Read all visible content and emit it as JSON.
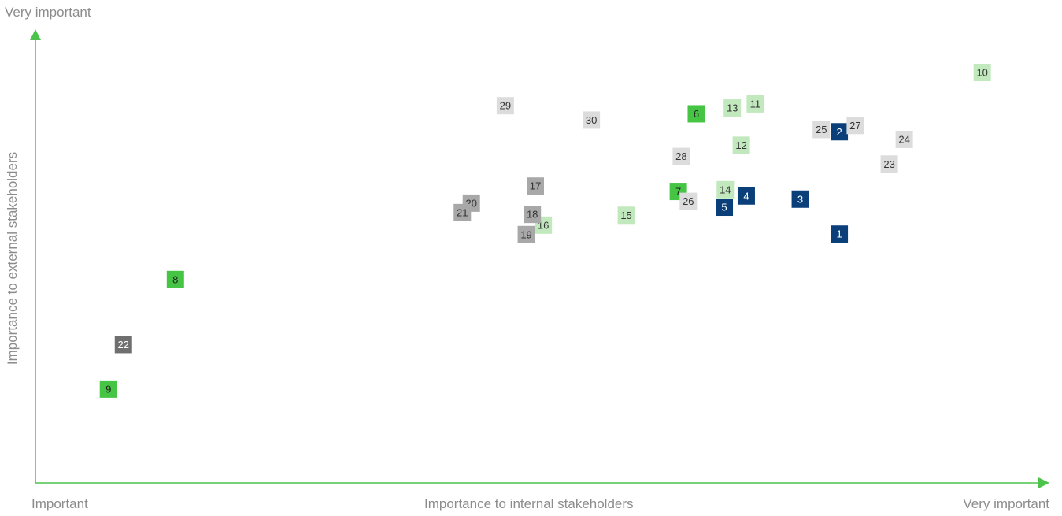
{
  "chart_data": {
    "type": "scatter",
    "title": "",
    "xlabel": "Importance to internal stakeholders",
    "ylabel": "Importance to external stakeholders",
    "x_min_label": "Important",
    "x_max_label": "Very important",
    "y_max_label": "Very important",
    "xlim": [
      0,
      1
    ],
    "ylim": [
      0,
      1
    ],
    "grid": false,
    "axis_color": "#4cc34a",
    "categories": {
      "navy": {
        "fill": "#0b3f7a",
        "text": "#ffffff"
      },
      "green": {
        "fill": "#46c444",
        "text": "#1f1f1f"
      },
      "light_green": {
        "fill": "#c2e9bd",
        "text": "#333333"
      },
      "light_gray": {
        "fill": "#dcdcdc",
        "text": "#333333"
      },
      "mid_gray": {
        "fill": "#a8a8a8",
        "text": "#333333"
      },
      "dark_gray": {
        "fill": "#6f6f6f",
        "text": "#ffffff"
      }
    },
    "points": [
      {
        "label": "1",
        "category": "navy",
        "x": 0.804,
        "y": 0.554
      },
      {
        "label": "2",
        "category": "navy",
        "x": 0.804,
        "y": 0.782
      },
      {
        "label": "3",
        "category": "navy",
        "x": 0.765,
        "y": 0.632
      },
      {
        "label": "4",
        "category": "navy",
        "x": 0.711,
        "y": 0.639
      },
      {
        "label": "5",
        "category": "navy",
        "x": 0.689,
        "y": 0.614
      },
      {
        "label": "6",
        "category": "green",
        "x": 0.661,
        "y": 0.822
      },
      {
        "label": "7",
        "category": "green",
        "x": 0.643,
        "y": 0.649
      },
      {
        "label": "8",
        "category": "green",
        "x": 0.14,
        "y": 0.453
      },
      {
        "label": "9",
        "category": "green",
        "x": 0.073,
        "y": 0.209
      },
      {
        "label": "10",
        "category": "light_green",
        "x": 0.947,
        "y": 0.914
      },
      {
        "label": "11",
        "category": "light_green",
        "x": 0.72,
        "y": 0.844
      },
      {
        "label": "12",
        "category": "light_green",
        "x": 0.706,
        "y": 0.752
      },
      {
        "label": "13",
        "category": "light_green",
        "x": 0.697,
        "y": 0.835
      },
      {
        "label": "14",
        "category": "light_green",
        "x": 0.69,
        "y": 0.653
      },
      {
        "label": "15",
        "category": "light_green",
        "x": 0.591,
        "y": 0.596
      },
      {
        "label": "16",
        "category": "light_green",
        "x": 0.508,
        "y": 0.574
      },
      {
        "label": "17",
        "category": "mid_gray",
        "x": 0.5,
        "y": 0.661
      },
      {
        "label": "18",
        "category": "mid_gray",
        "x": 0.497,
        "y": 0.598
      },
      {
        "label": "19",
        "category": "mid_gray",
        "x": 0.491,
        "y": 0.553
      },
      {
        "label": "20",
        "category": "mid_gray",
        "x": 0.436,
        "y": 0.623
      },
      {
        "label": "21",
        "category": "mid_gray",
        "x": 0.427,
        "y": 0.602
      },
      {
        "label": "22",
        "category": "dark_gray",
        "x": 0.088,
        "y": 0.308
      },
      {
        "label": "23",
        "category": "light_gray",
        "x": 0.854,
        "y": 0.71
      },
      {
        "label": "24",
        "category": "light_gray",
        "x": 0.869,
        "y": 0.765
      },
      {
        "label": "25",
        "category": "light_gray",
        "x": 0.786,
        "y": 0.787
      },
      {
        "label": "26",
        "category": "light_gray",
        "x": 0.653,
        "y": 0.627
      },
      {
        "label": "27",
        "category": "light_gray",
        "x": 0.82,
        "y": 0.796
      },
      {
        "label": "28",
        "category": "light_gray",
        "x": 0.646,
        "y": 0.727
      },
      {
        "label": "29",
        "category": "light_gray",
        "x": 0.47,
        "y": 0.84
      },
      {
        "label": "30",
        "category": "light_gray",
        "x": 0.556,
        "y": 0.808
      }
    ]
  }
}
